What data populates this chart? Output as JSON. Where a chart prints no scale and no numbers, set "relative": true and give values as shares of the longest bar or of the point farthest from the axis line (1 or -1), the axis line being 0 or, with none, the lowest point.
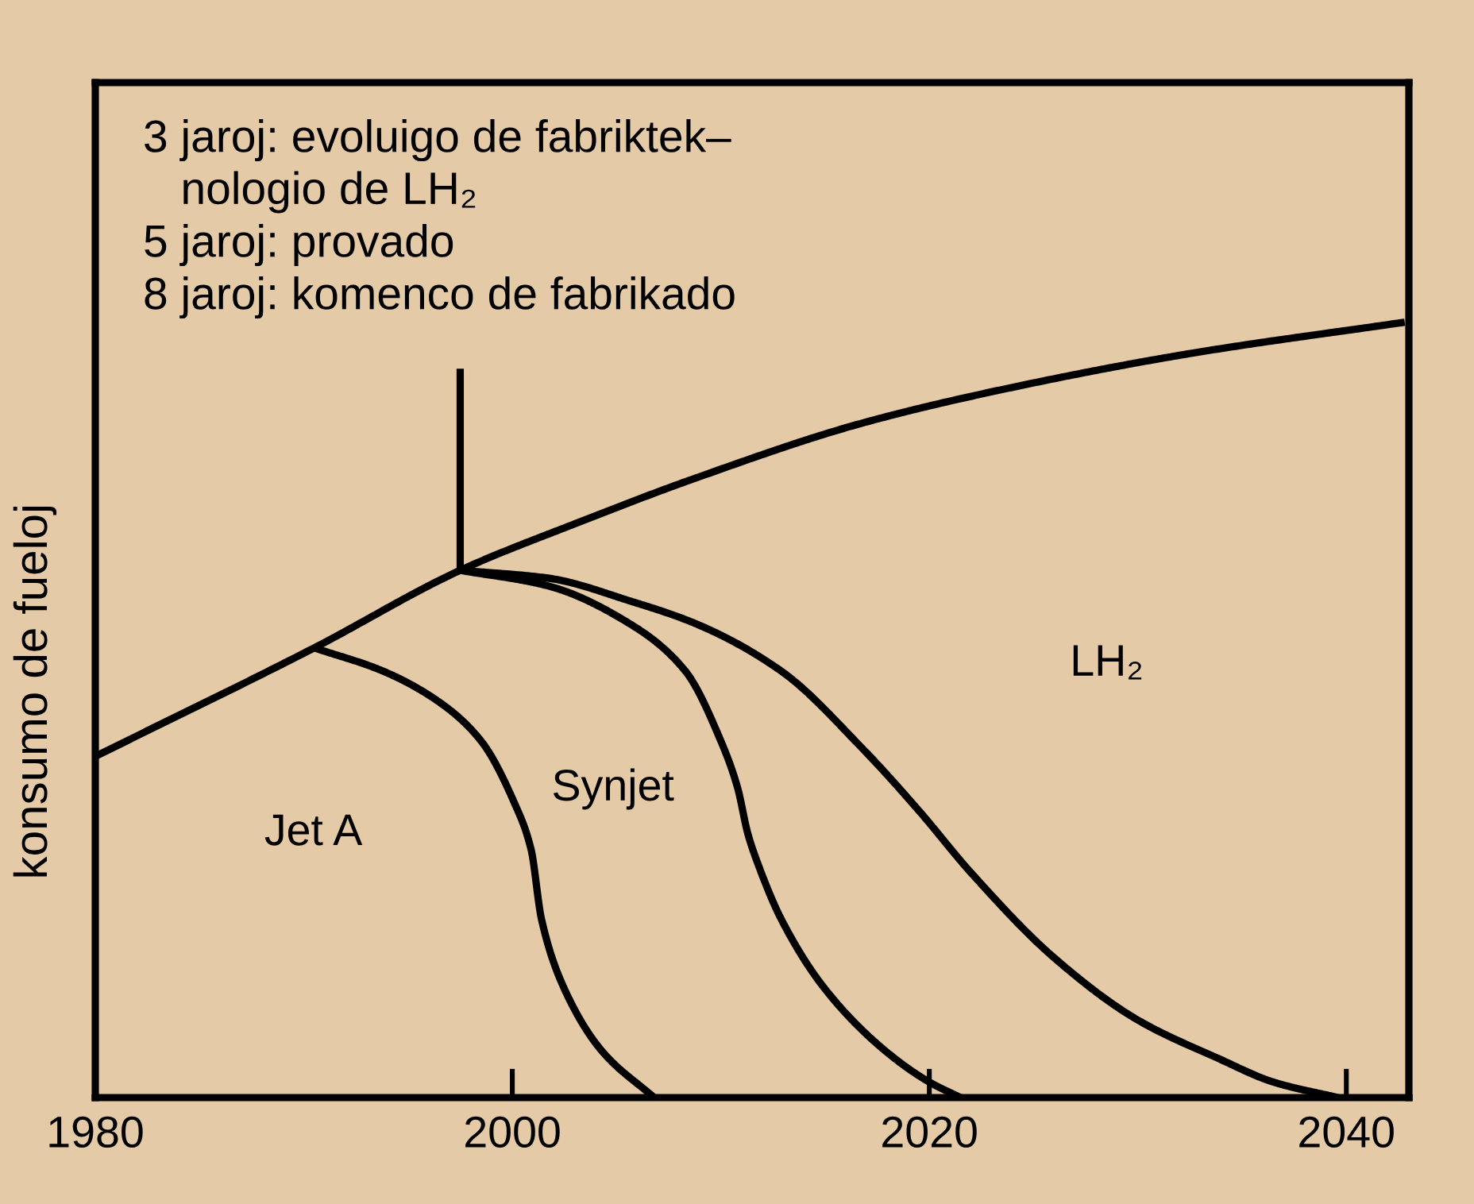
{
  "chart_data": {
    "type": "line",
    "relative": true,
    "ylabel": "konsumo de fueloj",
    "xlim": [
      1980,
      2043
    ],
    "xticks": [
      1980,
      2000,
      2020,
      2040
    ],
    "line_style": "solid",
    "series": [
      {
        "color": "#000000",
        "x": [
          1980,
          1990.5,
          1997.5,
          2003.0,
          2008.9,
          2016.8,
          2024.7,
          2032.6,
          2042.8
        ],
        "values": [
          0.44,
          0.58,
          0.68,
          0.74,
          0.8,
          0.87,
          0.92,
          0.96,
          1.0
        ]
      },
      {
        "color": "#000000",
        "x": [
          1990.5,
          1993.8,
          1996.5,
          1998.5,
          2000.1,
          2000.9,
          2001.4,
          2002.5,
          2004.3,
          2006.8
        ],
        "values": [
          0.58,
          0.55,
          0.51,
          0.46,
          0.38,
          0.32,
          0.23,
          0.14,
          0.06,
          0
        ]
      },
      {
        "color": "#000000",
        "x": [
          1997.5,
          2001.7,
          2005.7,
          2008.3,
          2010.0,
          2010.8,
          2011.3,
          2011.8,
          2012.9,
          2015.0,
          2017.9,
          2020.0,
          2021.5
        ],
        "values": [
          0.68,
          0.66,
          0.61,
          0.55,
          0.46,
          0.4,
          0.34,
          0.3,
          0.23,
          0.14,
          0.06,
          0.02,
          0
        ]
      },
      {
        "color": "#000000",
        "x": [
          1997.5,
          2001.7,
          2005.7,
          2008.9,
          2012.9,
          2016.8,
          2019.5,
          2022.0,
          2026.0,
          2030.0,
          2033.9,
          2036.5,
          2039.6
        ],
        "values": [
          0.68,
          0.67,
          0.64,
          0.61,
          0.55,
          0.45,
          0.37,
          0.29,
          0.18,
          0.1,
          0.05,
          0.02,
          0
        ]
      },
      {
        "color": "#000000",
        "x": [
          1997.5,
          1997.5
        ],
        "values": [
          0.68,
          0.94
        ]
      }
    ],
    "annotations": [
      "3 jaroj: evoluigo de fabriktek–\n   nologio de LH₂",
      "5 jaroj: provado",
      "8 jaroj: komenco de fabrikado",
      "Jet A",
      "Synjet",
      "LH₂"
    ]
  }
}
